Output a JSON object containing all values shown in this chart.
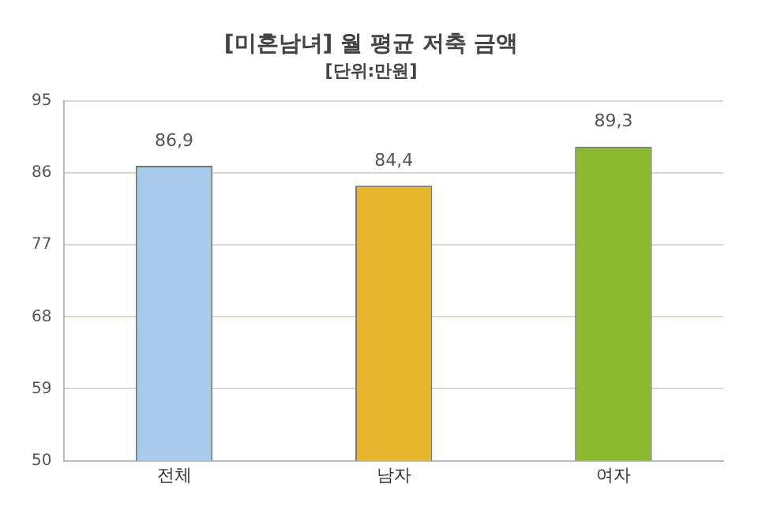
{
  "chart_data": {
    "type": "bar",
    "title": "[미혼남녀] 월 평균 저축 금액",
    "subtitle": "[단위:만원]",
    "categories": [
      "전체",
      "남자",
      "여자"
    ],
    "values": [
      86.9,
      84.4,
      89.3
    ],
    "value_labels": [
      "86,9",
      "84,4",
      "89,3"
    ],
    "colors": [
      "#a9cbeb",
      "#e6b52c",
      "#8cba2e"
    ],
    "ylim": [
      50,
      95
    ],
    "yticks": [
      50,
      59,
      68,
      77,
      86,
      95
    ],
    "grid": "y",
    "legend": false
  }
}
